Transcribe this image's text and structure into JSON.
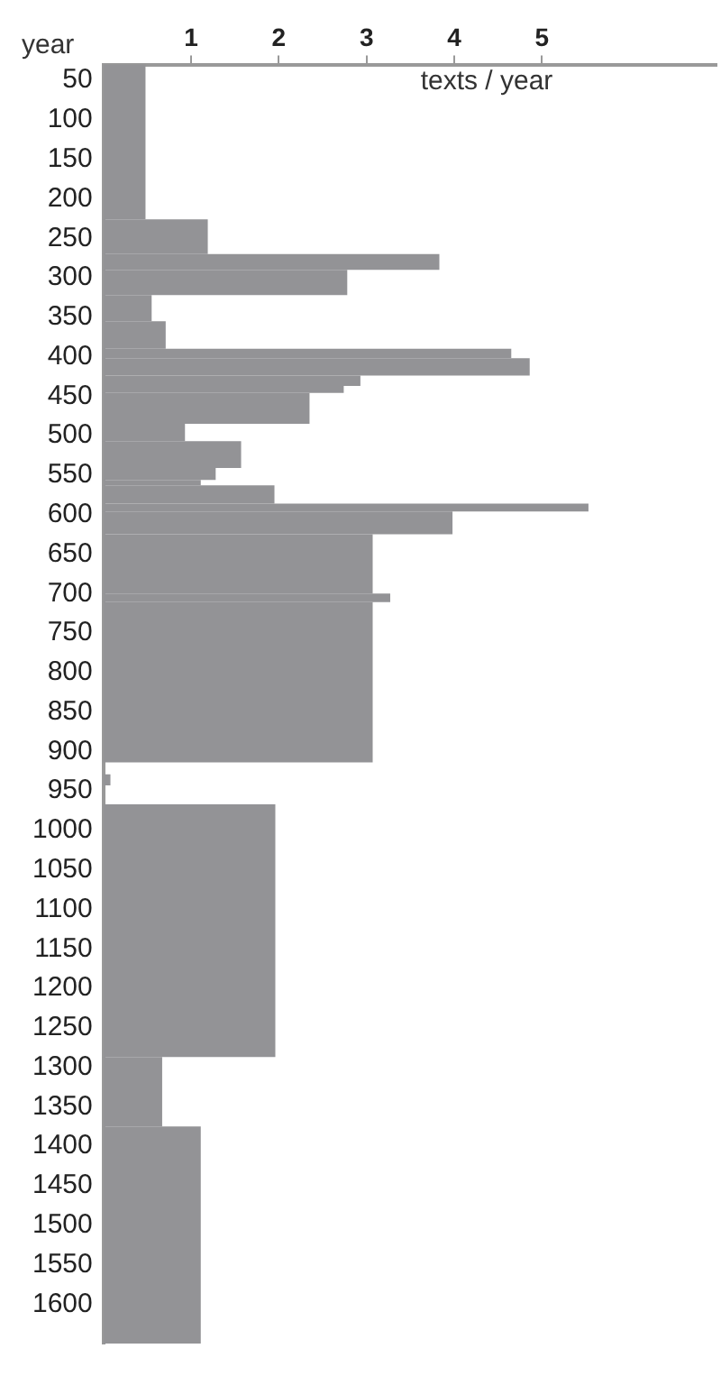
{
  "chart_data": {
    "type": "histogram",
    "orientation": "horizontal",
    "xlabel": "texts / year",
    "ylabel": "year",
    "bins": [
      30,
      226,
      270,
      290,
      322,
      355,
      390,
      402,
      424,
      437,
      446,
      485,
      507,
      541,
      556,
      563,
      586,
      596,
      625,
      700,
      711,
      914,
      929,
      943,
      967,
      1287,
      1375,
      1650
    ],
    "values": [
      0.48,
      1.19,
      3.83,
      2.78,
      0.55,
      0.71,
      4.65,
      4.86,
      2.93,
      2.74,
      2.35,
      0.93,
      1.57,
      1.28,
      1.11,
      1.95,
      5.53,
      3.98,
      3.07,
      3.27,
      3.07,
      0,
      0.08,
      0,
      1.96,
      0.67,
      1.11
    ],
    "color": "#939396",
    "xlim": [
      0,
      7
    ],
    "xticks": [
      1,
      2,
      3,
      4,
      5
    ],
    "ylim": [
      1650,
      30
    ],
    "yticks": [
      50,
      100,
      150,
      200,
      250,
      300,
      350,
      400,
      450,
      500,
      550,
      600,
      650,
      700,
      750,
      800,
      850,
      900,
      950,
      1000,
      1050,
      1100,
      1150,
      1200,
      1250,
      1300,
      1350,
      1400,
      1450,
      1500,
      1550,
      1600
    ],
    "grid": false,
    "legend": false
  }
}
